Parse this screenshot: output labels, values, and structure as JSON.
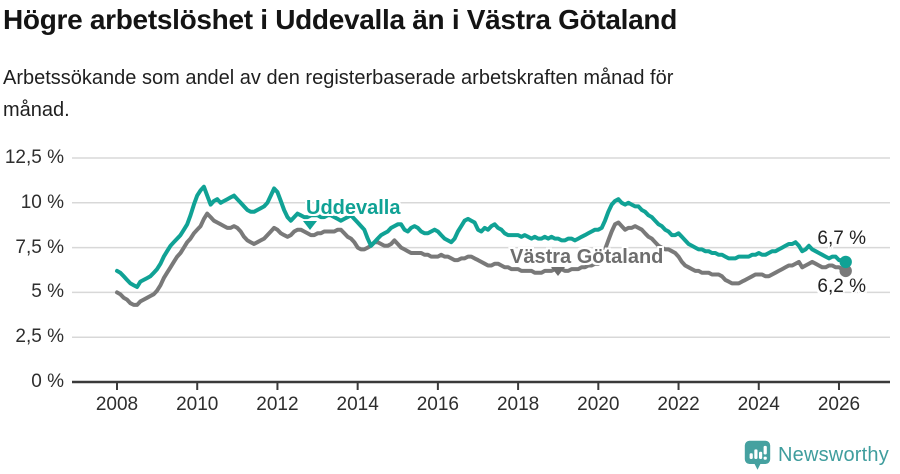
{
  "header": {
    "title": "Högre arbetslöshet i Uddevalla än i Västra Götaland",
    "subtitle": "Arbetssökande som andel av den registerbaserade arbetskraften månad för månad."
  },
  "footer": {
    "brand": "Newsworthy",
    "logo_icon": "newsworthy-speech-bubble-bar-chart-icon"
  },
  "colors": {
    "uddevalla": "#10a295",
    "vastra_gotaland": "#797979",
    "grid": "#d8d8d8",
    "axis": "#3a3a3a",
    "tick_text": "#2e2e2e",
    "brand_teal": "#3f9d9d"
  },
  "chart_data": {
    "type": "line",
    "title": "Högre arbetslöshet i Uddevalla än i Västra Götaland",
    "subtitle": "Arbetssökande som andel av den registerbaserade arbetskraften månad för månad.",
    "unit": "%",
    "grid": "horizontal",
    "legend_position": "inline-labels",
    "x_axis": {
      "start_year": 2008,
      "interval": "monthly",
      "ticks": [
        2008,
        2010,
        2012,
        2014,
        2016,
        2018,
        2020,
        2022,
        2024,
        2026
      ],
      "range": [
        2008,
        2026.4
      ]
    },
    "y_axis": {
      "ticks": [
        0,
        2.5,
        5,
        7.5,
        10,
        12.5
      ],
      "tick_labels": [
        "0 %",
        "2,5 %",
        "5 %",
        "7,5 %",
        "10 %",
        "12,5 %"
      ],
      "range": [
        0,
        12.5
      ]
    },
    "series": [
      {
        "name": "Uddevalla",
        "id": "uddevalla",
        "color": "#10a295",
        "end_label": "6,7 %",
        "end_value": 6.7,
        "start_year": 2008,
        "interval": "monthly",
        "values": [
          6.2,
          6.1,
          5.9,
          5.7,
          5.5,
          5.4,
          5.3,
          5.6,
          5.7,
          5.8,
          5.9,
          6.1,
          6.3,
          6.6,
          7.0,
          7.3,
          7.6,
          7.8,
          8.0,
          8.2,
          8.5,
          8.8,
          9.3,
          9.9,
          10.4,
          10.7,
          10.9,
          10.4,
          9.9,
          10.1,
          10.2,
          10.0,
          10.1,
          10.2,
          10.3,
          10.4,
          10.2,
          10.0,
          9.8,
          9.6,
          9.5,
          9.5,
          9.6,
          9.7,
          9.8,
          10.0,
          10.4,
          10.8,
          10.6,
          10.1,
          9.6,
          9.2,
          9.0,
          9.2,
          9.4,
          9.3,
          9.2,
          9.2,
          9.3,
          9.3,
          9.3,
          9.2,
          9.2,
          9.3,
          9.3,
          9.2,
          9.1,
          9.0,
          9.1,
          9.2,
          9.3,
          9.1,
          8.9,
          8.7,
          8.5,
          8.0,
          7.6,
          7.8,
          8.0,
          8.2,
          8.3,
          8.4,
          8.6,
          8.7,
          8.8,
          8.8,
          8.5,
          8.4,
          8.6,
          8.7,
          8.6,
          8.4,
          8.3,
          8.3,
          8.4,
          8.5,
          8.4,
          8.2,
          8.0,
          7.9,
          7.8,
          8.0,
          8.4,
          8.7,
          9.0,
          9.1,
          9.0,
          8.9,
          8.5,
          8.4,
          8.6,
          8.5,
          8.7,
          8.8,
          8.6,
          8.5,
          8.3,
          8.2,
          8.2,
          8.2,
          8.2,
          8.1,
          8.2,
          8.1,
          8.0,
          8.1,
          8.0,
          8.0,
          8.1,
          8.0,
          8.1,
          8.0,
          8.0,
          7.9,
          7.9,
          8.0,
          8.0,
          7.9,
          8.0,
          8.1,
          8.2,
          8.3,
          8.4,
          8.5,
          8.5,
          8.6,
          9.0,
          9.5,
          9.9,
          10.1,
          10.2,
          10.0,
          9.9,
          10.0,
          9.9,
          9.8,
          9.8,
          9.6,
          9.5,
          9.3,
          9.2,
          9.0,
          8.8,
          8.7,
          8.5,
          8.4,
          8.2,
          8.2,
          8.3,
          8.1,
          7.9,
          7.7,
          7.6,
          7.5,
          7.4,
          7.4,
          7.3,
          7.3,
          7.2,
          7.2,
          7.1,
          7.1,
          7.0,
          6.9,
          6.9,
          6.9,
          7.0,
          7.0,
          7.0,
          7.0,
          7.1,
          7.1,
          7.2,
          7.1,
          7.1,
          7.2,
          7.3,
          7.3,
          7.4,
          7.5,
          7.6,
          7.7,
          7.7,
          7.8,
          7.6,
          7.3,
          7.4,
          7.6,
          7.4,
          7.3,
          7.2,
          7.1,
          7.0,
          6.9,
          7.0,
          7.0,
          6.8,
          6.8,
          6.7
        ]
      },
      {
        "name": "Västra Götaland",
        "id": "vastra-gotaland",
        "color": "#797979",
        "end_label": "6,2 %",
        "end_value": 6.2,
        "start_year": 2008,
        "interval": "monthly",
        "values": [
          5.0,
          4.9,
          4.7,
          4.6,
          4.4,
          4.3,
          4.3,
          4.5,
          4.6,
          4.7,
          4.8,
          4.9,
          5.1,
          5.4,
          5.8,
          6.1,
          6.4,
          6.7,
          7.0,
          7.2,
          7.5,
          7.8,
          8.0,
          8.3,
          8.5,
          8.7,
          9.1,
          9.4,
          9.2,
          9.0,
          8.9,
          8.8,
          8.7,
          8.6,
          8.6,
          8.7,
          8.6,
          8.4,
          8.1,
          7.9,
          7.8,
          7.7,
          7.8,
          7.9,
          8.0,
          8.2,
          8.4,
          8.6,
          8.5,
          8.3,
          8.2,
          8.1,
          8.2,
          8.4,
          8.5,
          8.5,
          8.4,
          8.3,
          8.2,
          8.2,
          8.3,
          8.3,
          8.4,
          8.4,
          8.4,
          8.4,
          8.5,
          8.5,
          8.3,
          8.1,
          8.0,
          7.8,
          7.5,
          7.4,
          7.4,
          7.5,
          7.6,
          7.8,
          7.8,
          7.7,
          7.6,
          7.6,
          7.7,
          7.9,
          7.7,
          7.5,
          7.4,
          7.3,
          7.2,
          7.2,
          7.2,
          7.2,
          7.1,
          7.1,
          7.0,
          7.0,
          7.0,
          7.1,
          7.0,
          7.0,
          6.9,
          6.8,
          6.8,
          6.9,
          6.9,
          7.0,
          7.0,
          6.9,
          6.8,
          6.7,
          6.6,
          6.5,
          6.5,
          6.6,
          6.6,
          6.5,
          6.4,
          6.4,
          6.3,
          6.3,
          6.3,
          6.2,
          6.2,
          6.2,
          6.2,
          6.1,
          6.1,
          6.1,
          6.2,
          6.2,
          6.2,
          6.3,
          6.3,
          6.3,
          6.2,
          6.2,
          6.3,
          6.3,
          6.3,
          6.4,
          6.4,
          6.5,
          6.5,
          6.6,
          6.6,
          6.9,
          7.4,
          7.9,
          8.4,
          8.8,
          8.9,
          8.7,
          8.5,
          8.6,
          8.6,
          8.7,
          8.6,
          8.5,
          8.3,
          8.1,
          8.0,
          7.8,
          7.6,
          7.5,
          7.4,
          7.4,
          7.3,
          7.2,
          7.0,
          6.7,
          6.5,
          6.4,
          6.3,
          6.2,
          6.2,
          6.1,
          6.1,
          6.1,
          6.0,
          6.0,
          6.0,
          5.9,
          5.7,
          5.6,
          5.5,
          5.5,
          5.5,
          5.6,
          5.7,
          5.8,
          5.9,
          6.0,
          6.0,
          6.0,
          5.9,
          5.9,
          6.0,
          6.1,
          6.2,
          6.3,
          6.4,
          6.5,
          6.5,
          6.6,
          6.7,
          6.4,
          6.5,
          6.6,
          6.7,
          6.6,
          6.5,
          6.4,
          6.4,
          6.5,
          6.5,
          6.4,
          6.4,
          6.3,
          6.2
        ]
      }
    ]
  }
}
